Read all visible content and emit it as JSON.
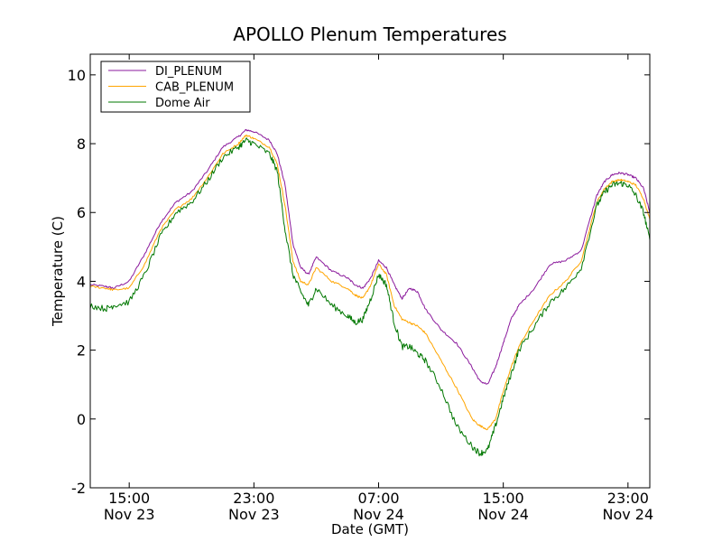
{
  "chart_data": {
    "type": "line",
    "title": "APOLLO Plenum Temperatures",
    "xlabel": "Date (GMT)",
    "ylabel": "Temperature (C)",
    "ylim": [
      -2,
      10.6
    ],
    "xlim_hours": [
      12.5,
      48.4
    ],
    "yticks": [
      {
        "value": -2,
        "label": "-2"
      },
      {
        "value": 0,
        "label": "0"
      },
      {
        "value": 2,
        "label": "2"
      },
      {
        "value": 4,
        "label": "4"
      },
      {
        "value": 6,
        "label": "6"
      },
      {
        "value": 8,
        "label": "8"
      },
      {
        "value": 10,
        "label": "10"
      }
    ],
    "xticks": [
      {
        "hour": 15,
        "time": "15:00",
        "date": "Nov 23"
      },
      {
        "hour": 23,
        "time": "23:00",
        "date": "Nov 23"
      },
      {
        "hour": 31,
        "time": "07:00",
        "date": "Nov 24"
      },
      {
        "hour": 39,
        "time": "15:00",
        "date": "Nov 24"
      },
      {
        "hour": 47,
        "time": "23:00",
        "date": "Nov 24"
      }
    ],
    "legend_position": "top-left",
    "series": [
      {
        "name": "DI_PLENUM",
        "color": "#8b1a9c",
        "x": [
          12.5,
          13.5,
          14.0,
          15.0,
          16.0,
          17.0,
          18.0,
          19.0,
          20.0,
          21.0,
          22.0,
          22.5,
          23.0,
          24.0,
          24.5,
          25.0,
          25.5,
          26.0,
          26.5,
          27.0,
          28.0,
          29.0,
          29.5,
          30.0,
          30.5,
          31.0,
          31.5,
          32.0,
          32.5,
          33.0,
          33.5,
          34.0,
          35.0,
          36.0,
          37.0,
          37.5,
          38.0,
          38.5,
          39.0,
          39.5,
          40.0,
          41.0,
          42.0,
          43.0,
          44.0,
          45.0,
          45.5,
          46.0,
          46.5,
          47.0,
          47.5,
          48.0,
          48.4
        ],
        "y": [
          3.9,
          3.85,
          3.8,
          4.0,
          4.8,
          5.7,
          6.3,
          6.6,
          7.2,
          7.9,
          8.2,
          8.4,
          8.35,
          8.1,
          7.7,
          6.8,
          5.1,
          4.4,
          4.2,
          4.7,
          4.3,
          4.1,
          3.9,
          3.8,
          4.1,
          4.6,
          4.4,
          3.9,
          3.5,
          3.8,
          3.7,
          3.2,
          2.6,
          2.2,
          1.5,
          1.1,
          1.0,
          1.5,
          2.2,
          2.9,
          3.3,
          3.8,
          4.5,
          4.6,
          4.9,
          6.5,
          6.9,
          7.1,
          7.15,
          7.1,
          7.0,
          6.7,
          6.0
        ]
      },
      {
        "name": "CAB_PLENUM",
        "color": "#ffa500",
        "x": [
          12.5,
          13.5,
          14.0,
          15.0,
          16.0,
          17.0,
          18.0,
          19.0,
          20.0,
          21.0,
          22.0,
          22.5,
          23.0,
          24.0,
          24.5,
          25.0,
          25.5,
          26.0,
          26.5,
          27.0,
          28.0,
          29.0,
          29.5,
          30.0,
          30.5,
          31.0,
          31.5,
          32.0,
          32.5,
          33.0,
          33.5,
          34.0,
          35.0,
          36.0,
          37.0,
          37.5,
          38.0,
          38.5,
          39.0,
          39.5,
          40.0,
          41.0,
          42.0,
          43.0,
          44.0,
          45.0,
          45.5,
          46.0,
          46.5,
          47.0,
          47.5,
          48.0,
          48.4
        ],
        "y": [
          3.85,
          3.8,
          3.75,
          3.8,
          4.5,
          5.5,
          6.1,
          6.4,
          7.0,
          7.7,
          8.0,
          8.25,
          8.15,
          7.9,
          7.4,
          6.2,
          4.6,
          4.0,
          3.9,
          4.4,
          4.0,
          3.8,
          3.6,
          3.5,
          3.9,
          4.5,
          4.2,
          3.3,
          2.9,
          2.8,
          2.7,
          2.5,
          1.7,
          0.9,
          0.0,
          -0.2,
          -0.3,
          0.0,
          0.8,
          1.5,
          2.1,
          2.9,
          3.6,
          4.0,
          4.6,
          6.3,
          6.7,
          6.9,
          6.95,
          6.9,
          6.8,
          6.4,
          5.8
        ]
      },
      {
        "name": "Dome Air",
        "color": "#007700",
        "x": [
          12.5,
          13.5,
          14.0,
          15.0,
          16.0,
          17.0,
          18.0,
          19.0,
          20.0,
          21.0,
          22.0,
          22.5,
          23.0,
          24.0,
          24.5,
          25.0,
          25.5,
          26.0,
          26.5,
          27.0,
          28.0,
          29.0,
          29.5,
          30.0,
          30.5,
          31.0,
          31.5,
          32.0,
          32.5,
          33.0,
          33.5,
          34.0,
          35.0,
          36.0,
          37.0,
          37.5,
          38.0,
          38.5,
          39.0,
          39.5,
          40.0,
          41.0,
          42.0,
          43.0,
          44.0,
          45.0,
          45.5,
          46.0,
          46.5,
          47.0,
          47.5,
          48.0,
          48.4
        ],
        "y": [
          3.3,
          3.2,
          3.3,
          3.4,
          4.2,
          5.3,
          6.0,
          6.3,
          6.9,
          7.6,
          7.9,
          8.1,
          8.0,
          7.7,
          7.2,
          5.5,
          4.2,
          3.7,
          3.3,
          3.8,
          3.3,
          3.0,
          2.8,
          2.9,
          3.5,
          4.2,
          3.9,
          2.8,
          2.1,
          2.1,
          1.9,
          1.7,
          0.9,
          -0.2,
          -0.8,
          -1.0,
          -0.9,
          -0.2,
          0.6,
          1.3,
          2.0,
          2.7,
          3.4,
          3.8,
          4.4,
          6.2,
          6.6,
          6.8,
          6.85,
          6.8,
          6.5,
          6.0,
          5.2
        ]
      }
    ]
  }
}
